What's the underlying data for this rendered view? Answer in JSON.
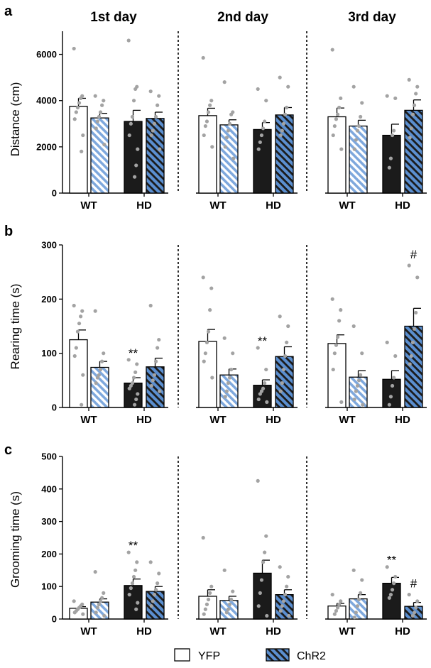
{
  "chart_data": {
    "type": "bar",
    "days": [
      "1st day",
      "2nd day",
      "3rd day"
    ],
    "groups": [
      "WT",
      "HD"
    ],
    "legend": [
      {
        "name": "YFP",
        "style": "open",
        "color": "#ffffff"
      },
      {
        "name": "ChR2",
        "style": "hatched",
        "color": "#5b8fd0"
      }
    ],
    "colors": {
      "wt_yfp": "#ffffff",
      "wt_chr2_hatch": "#a9c6ea",
      "hd_yfp": "#1b1b1b",
      "hd_chr2": "#5b8fd0",
      "dots": "#a3a3a3"
    },
    "panels": [
      {
        "letter": "a",
        "ylabel": "Distance (cm)",
        "ylim": [
          0,
          7000
        ],
        "yticks": [
          0,
          2000,
          4000,
          6000
        ],
        "days": [
          {
            "bars": [
              {
                "group": "WT",
                "condition": "YFP",
                "mean": 3750,
                "sem": 350,
                "points": [
                  6250,
                  4200,
                  4100,
                  3900,
                  3700,
                  3500,
                  3200,
                  2500,
                  1800
                ]
              },
              {
                "group": "WT",
                "condition": "ChR2",
                "mean": 3250,
                "sem": 200,
                "points": [
                  4200,
                  4000,
                  3800,
                  3500,
                  3300,
                  3100,
                  2800,
                  2100
                ]
              },
              {
                "group": "HD",
                "condition": "YFP",
                "mean": 3100,
                "sem": 480,
                "points": [
                  6600,
                  4600,
                  4500,
                  4000,
                  3300,
                  3000,
                  2500,
                  1900,
                  1200,
                  700
                ]
              },
              {
                "group": "HD",
                "condition": "ChR2",
                "mean": 3230,
                "sem": 270,
                "points": [
                  4400,
                  4200,
                  3800,
                  3300,
                  3000,
                  2700,
                  2500,
                  1900
                ]
              }
            ],
            "annotations": []
          },
          {
            "bars": [
              {
                "group": "WT",
                "condition": "YFP",
                "mean": 3350,
                "sem": 320,
                "points": [
                  5850,
                  4000,
                  3800,
                  3500,
                  3100,
                  2900,
                  2500,
                  2000
                ]
              },
              {
                "group": "WT",
                "condition": "ChR2",
                "mean": 2950,
                "sem": 220,
                "points": [
                  4800,
                  3500,
                  3400,
                  3000,
                  2700,
                  2400,
                  2000,
                  1500
                ]
              },
              {
                "group": "HD",
                "condition": "YFP",
                "mean": 2750,
                "sem": 300,
                "points": [
                  4500,
                  4000,
                  3100,
                  2800,
                  2500,
                  2200,
                  1900
                ]
              },
              {
                "group": "HD",
                "condition": "ChR2",
                "mean": 3380,
                "sem": 320,
                "points": [
                  5000,
                  4600,
                  3700,
                  3400,
                  3000,
                  2700,
                  2500
                ]
              }
            ],
            "annotations": []
          },
          {
            "bars": [
              {
                "group": "WT",
                "condition": "YFP",
                "mean": 3300,
                "sem": 380,
                "points": [
                  6200,
                  4100,
                  3700,
                  3400,
                  3200,
                  2900,
                  2500,
                  1900
                ]
              },
              {
                "group": "WT",
                "condition": "ChR2",
                "mean": 2900,
                "sem": 250,
                "points": [
                  4600,
                  3900,
                  3300,
                  2900,
                  2700,
                  2300,
                  1900
                ]
              },
              {
                "group": "HD",
                "condition": "YFP",
                "mean": 2500,
                "sem": 480,
                "points": [
                  4200,
                  4100,
                  2700,
                  2500,
                  1500,
                  1100
                ]
              },
              {
                "group": "HD",
                "condition": "ChR2",
                "mean": 3580,
                "sem": 450,
                "points": [
                  4900,
                  4600,
                  4300,
                  3800,
                  3400,
                  2800,
                  2400
                ]
              }
            ],
            "annotations": []
          }
        ]
      },
      {
        "letter": "b",
        "ylabel": "Rearing time (s)",
        "ylim": [
          0,
          300
        ],
        "yticks": [
          0,
          100,
          200,
          300
        ],
        "days": [
          {
            "bars": [
              {
                "group": "WT",
                "condition": "YFP",
                "mean": 125,
                "sem": 18,
                "points": [
                  188,
                  178,
                  168,
                  155,
                  140,
                  110,
                  95,
                  60,
                  5
                ]
              },
              {
                "group": "WT",
                "condition": "ChR2",
                "mean": 74,
                "sem": 11,
                "points": [
                  178,
                  100,
                  85,
                  70,
                  60,
                  55,
                  45
                ]
              },
              {
                "group": "HD",
                "condition": "YFP",
                "mean": 45,
                "sem": 10,
                "points": [
                  88,
                  80,
                  65,
                  55,
                  45,
                  40,
                  35,
                  25,
                  15,
                  5
                ]
              },
              {
                "group": "HD",
                "condition": "ChR2",
                "mean": 75,
                "sem": 16,
                "points": [
                  188,
                  125,
                  110,
                  85,
                  60,
                  50,
                  40,
                  30
                ]
              }
            ],
            "annotations": [
              {
                "bar": 2,
                "text": "**"
              }
            ]
          },
          {
            "bars": [
              {
                "group": "WT",
                "condition": "YFP",
                "mean": 122,
                "sem": 22,
                "points": [
                  240,
                  220,
                  180,
                  140,
                  120,
                  100,
                  85,
                  55
                ]
              },
              {
                "group": "WT",
                "condition": "ChR2",
                "mean": 60,
                "sem": 11,
                "points": [
                  128,
                  100,
                  70,
                  55,
                  45,
                  30,
                  20
                ]
              },
              {
                "group": "HD",
                "condition": "YFP",
                "mean": 41,
                "sem": 10,
                "points": [
                  110,
                  70,
                  45,
                  35,
                  30,
                  25,
                  15,
                  10
                ]
              },
              {
                "group": "HD",
                "condition": "ChR2",
                "mean": 94,
                "sem": 18,
                "points": [
                  168,
                  150,
                  120,
                  95,
                  70,
                  45,
                  30
                ]
              }
            ],
            "annotations": [
              {
                "bar": 2,
                "text": "**"
              }
            ]
          },
          {
            "bars": [
              {
                "group": "WT",
                "condition": "YFP",
                "mean": 118,
                "sem": 16,
                "points": [
                  200,
                  180,
                  160,
                  130,
                  115,
                  100,
                  70,
                  10
                ]
              },
              {
                "group": "WT",
                "condition": "ChR2",
                "mean": 56,
                "sem": 12,
                "points": [
                  150,
                  100,
                  60,
                  50,
                  40,
                  30,
                  15,
                  5
                ]
              },
              {
                "group": "HD",
                "condition": "YFP",
                "mean": 52,
                "sem": 16,
                "points": [
                  120,
                  95,
                  55,
                  40,
                  20,
                  5
                ]
              },
              {
                "group": "HD",
                "condition": "ChR2",
                "mean": 150,
                "sem": 33,
                "points": [
                  262,
                  240,
                  175,
                  145,
                  120,
                  95,
                  80
                ]
              }
            ],
            "annotations": [
              {
                "bar": 3,
                "text": "#"
              }
            ]
          }
        ]
      },
      {
        "letter": "c",
        "ylabel": "Grooming time (s)",
        "ylim": [
          0,
          500
        ],
        "yticks": [
          0,
          100,
          200,
          300,
          400,
          500
        ],
        "days": [
          {
            "bars": [
              {
                "group": "WT",
                "condition": "YFP",
                "mean": 33,
                "sem": 5,
                "points": [
                  55,
                  45,
                  40,
                  35,
                  30,
                  25,
                  20,
                  15
                ]
              },
              {
                "group": "WT",
                "condition": "ChR2",
                "mean": 52,
                "sem": 10,
                "points": [
                  145,
                  80,
                  65,
                  55,
                  45,
                  35,
                  20,
                  10
                ]
              },
              {
                "group": "HD",
                "condition": "YFP",
                "mean": 103,
                "sem": 20,
                "points": [
                  205,
                  175,
                  150,
                  130,
                  110,
                  95,
                  75,
                  50,
                  30
                ]
              },
              {
                "group": "HD",
                "condition": "ChR2",
                "mean": 85,
                "sem": 15,
                "points": [
                  175,
                  140,
                  110,
                  90,
                  75,
                  55,
                  40
                ]
              }
            ],
            "annotations": [
              {
                "bar": 2,
                "text": "**"
              }
            ]
          },
          {
            "bars": [
              {
                "group": "WT",
                "condition": "YFP",
                "mean": 70,
                "sem": 20,
                "points": [
                  250,
                  100,
                  80,
                  60,
                  45,
                  30,
                  15
                ]
              },
              {
                "group": "WT",
                "condition": "ChR2",
                "mean": 57,
                "sem": 13,
                "points": [
                  150,
                  85,
                  60,
                  45,
                  30,
                  20
                ]
              },
              {
                "group": "HD",
                "condition": "YFP",
                "mean": 141,
                "sem": 40,
                "points": [
                  425,
                  255,
                  205,
                  175,
                  120,
                  80,
                  40,
                  10
                ]
              },
              {
                "group": "HD",
                "condition": "ChR2",
                "mean": 75,
                "sem": 15,
                "points": [
                  160,
                  130,
                  100,
                  75,
                  55,
                  40,
                  25,
                  10
                ]
              }
            ],
            "annotations": []
          },
          {
            "bars": [
              {
                "group": "WT",
                "condition": "YFP",
                "mean": 40,
                "sem": 8,
                "points": [
                  75,
                  55,
                  45,
                  35,
                  25,
                  15
                ]
              },
              {
                "group": "WT",
                "condition": "ChR2",
                "mean": 62,
                "sem": 13,
                "points": [
                  150,
                  120,
                  80,
                  60,
                  40,
                  20,
                  5
                ]
              },
              {
                "group": "HD",
                "condition": "YFP",
                "mean": 110,
                "sem": 18,
                "points": [
                  160,
                  130,
                  110,
                  90,
                  75,
                  65
                ]
              },
              {
                "group": "HD",
                "condition": "ChR2",
                "mean": 39,
                "sem": 12,
                "points": [
                  75,
                  55,
                  35,
                  20,
                  10
                ]
              }
            ],
            "annotations": [
              {
                "bar": 2,
                "text": "**"
              },
              {
                "bar": 3,
                "text": "#"
              }
            ]
          }
        ]
      }
    ]
  }
}
